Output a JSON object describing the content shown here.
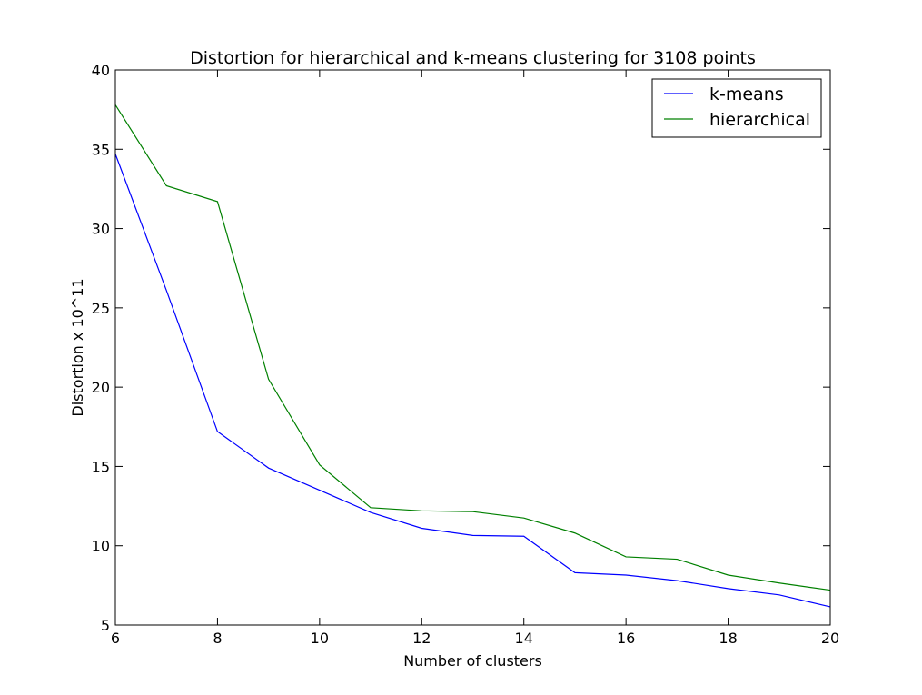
{
  "chart_data": {
    "type": "line",
    "title": "Distortion for hierarchical and k-means clustering for 3108 points",
    "xlabel": "Number of clusters",
    "ylabel": "Distortion x 10^11",
    "xlim": [
      6,
      20
    ],
    "ylim": [
      5,
      40
    ],
    "xticks": [
      6,
      8,
      10,
      12,
      14,
      16,
      18,
      20
    ],
    "yticks": [
      5,
      10,
      15,
      20,
      25,
      30,
      35,
      40
    ],
    "grid": false,
    "legend_position": "top-right",
    "x": [
      6,
      7,
      8,
      9,
      10,
      11,
      12,
      13,
      14,
      15,
      16,
      17,
      18,
      19,
      20
    ],
    "series": [
      {
        "name": "k-means",
        "color": "#0000ff",
        "values": [
          34.7,
          26.1,
          17.2,
          14.9,
          13.5,
          12.1,
          11.1,
          10.65,
          10.6,
          8.3,
          8.15,
          7.8,
          7.3,
          6.9,
          6.15
        ]
      },
      {
        "name": "hierarchical",
        "color": "#008000",
        "values": [
          37.8,
          32.7,
          31.7,
          20.5,
          15.1,
          12.4,
          12.2,
          12.15,
          11.75,
          10.8,
          9.3,
          9.15,
          8.15,
          7.65,
          7.2
        ]
      }
    ]
  }
}
